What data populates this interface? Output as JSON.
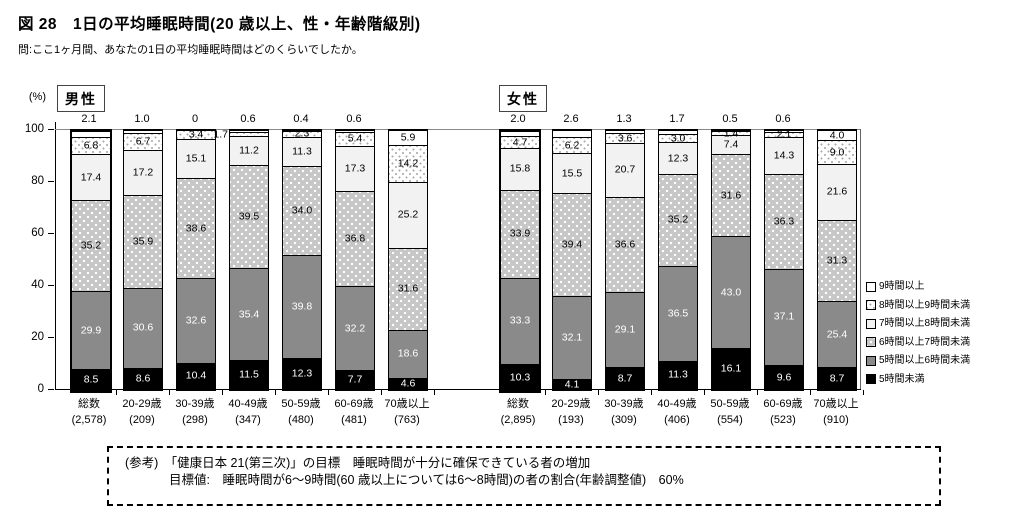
{
  "title": "図 28　1日の平均睡眠時間(20 歳以上、性・年齢階級別)",
  "question": "問:ここ1ヶ月間、あなたの1日の平均睡眠時間はどのくらいでしたか。",
  "y_axis": {
    "unit": "(%)",
    "ticks": [
      "100",
      "80",
      "60",
      "40",
      "20",
      "0"
    ]
  },
  "note": {
    "line1": "(参考)　「健康日本 21(第三次)」の目標　睡眠時間が十分に確保できている者の増加",
    "line2": "目標値:　睡眠時間が6～9時間(60 歳以上については6～8時間)の者の割合(年齢調整値)　60%"
  },
  "colors": {
    "bar_border": "#000000",
    "gray_series": "#8a8a8a",
    "dotted_gray_series": "#c7c7c7",
    "light_series": "#f2f2f2",
    "black_series": "#000000"
  },
  "chart_data": {
    "type": "bar",
    "subtype": "100%-stacked-vertical",
    "ylim": [
      0,
      100
    ],
    "grid": "top line at 100 only",
    "legend_position": "right",
    "series_bottom_to_top": [
      {
        "label": "5時間未満",
        "pattern": "black",
        "text": "#ffffff"
      },
      {
        "label": "5時間以上6時間未満",
        "pattern": "gray",
        "text": "#ffffff"
      },
      {
        "label": "6時間以上7時間未満",
        "pattern": "dotgray",
        "text": "#000000"
      },
      {
        "label": "7時間以上8時間未満",
        "pattern": "light",
        "text": "#000000"
      },
      {
        "label": "8時間以上9時間未満",
        "pattern": "dotlight",
        "text": "#000000"
      },
      {
        "label": "9時間以上",
        "pattern": "white",
        "text": "#000000"
      }
    ],
    "groups": [
      {
        "label": "男性",
        "categories": [
          {
            "label": "総数",
            "n": "(2,578)",
            "emphasis": true,
            "values": [
              "8.5",
              "29.9",
              "35.2",
              "17.4",
              "6.8",
              "2.1"
            ]
          },
          {
            "label": "20-29歳",
            "n": "(209)",
            "emphasis": false,
            "values": [
              "8.6",
              "30.6",
              "35.9",
              "17.2",
              "6.7",
              "1.0"
            ]
          },
          {
            "label": "30-39歳",
            "n": "(298)",
            "emphasis": false,
            "values": [
              "10.4",
              "32.6",
              "38.6",
              "15.1",
              "3.4",
              "0"
            ]
          },
          {
            "label": "40-49歳",
            "n": "(347)",
            "emphasis": false,
            "values": [
              "11.5",
              "35.4",
              "39.5",
              "11.2",
              "1.7",
              "0.6"
            ]
          },
          {
            "label": "50-59歳",
            "n": "(480)",
            "emphasis": false,
            "values": [
              "12.3",
              "39.8",
              "34.0",
              "11.3",
              "2.3",
              "0.4"
            ]
          },
          {
            "label": "60-69歳",
            "n": "(481)",
            "emphasis": false,
            "values": [
              "7.7",
              "32.2",
              "36.8",
              "17.3",
              "5.4",
              "0.6"
            ]
          },
          {
            "label": "70歳以上",
            "n": "(763)",
            "emphasis": false,
            "values": [
              "4.6",
              "18.6",
              "31.6",
              "25.2",
              "14.2",
              "5.9"
            ]
          }
        ]
      },
      {
        "label": "女性",
        "categories": [
          {
            "label": "総数",
            "n": "(2,895)",
            "emphasis": true,
            "values": [
              "10.3",
              "33.3",
              "33.9",
              "15.8",
              "4.7",
              "2.0"
            ]
          },
          {
            "label": "20-29歳",
            "n": "(193)",
            "emphasis": false,
            "values": [
              "4.1",
              "32.1",
              "39.4",
              "15.5",
              "6.2",
              "2.6"
            ]
          },
          {
            "label": "30-39歳",
            "n": "(309)",
            "emphasis": false,
            "values": [
              "8.7",
              "29.1",
              "36.6",
              "20.7",
              "3.6",
              "1.3"
            ]
          },
          {
            "label": "40-49歳",
            "n": "(406)",
            "emphasis": false,
            "values": [
              "11.3",
              "36.5",
              "35.2",
              "12.3",
              "3.0",
              "1.7"
            ]
          },
          {
            "label": "50-59歳",
            "n": "(554)",
            "emphasis": false,
            "values": [
              "16.1",
              "43.0",
              "31.6",
              "7.4",
              "1.4",
              "0.5"
            ]
          },
          {
            "label": "60-69歳",
            "n": "(523)",
            "emphasis": false,
            "values": [
              "9.6",
              "37.1",
              "36.3",
              "14.3",
              "2.1",
              "0.6"
            ]
          },
          {
            "label": "70歳以上",
            "n": "(910)",
            "emphasis": false,
            "values": [
              "8.7",
              "25.4",
              "31.3",
              "21.6",
              "9.0",
              "4.0"
            ]
          }
        ]
      }
    ],
    "label_overrides": [
      {
        "group": 0,
        "category": 3,
        "segment": 4,
        "placement": "outside-left"
      }
    ]
  }
}
